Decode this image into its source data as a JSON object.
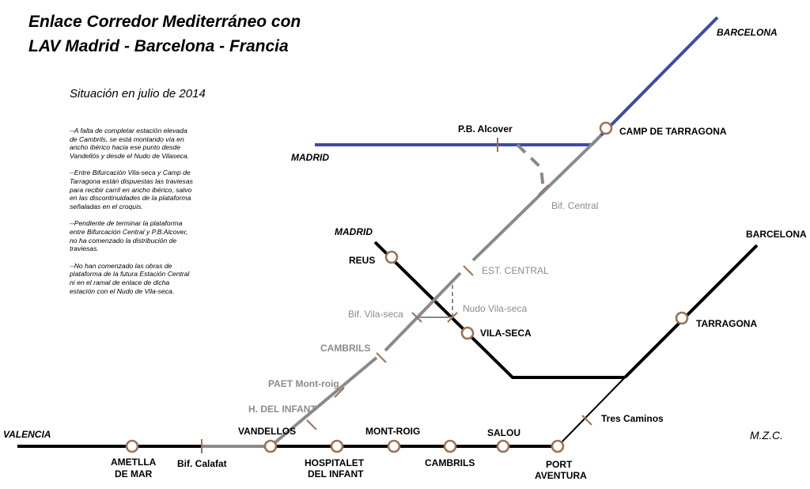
{
  "title": {
    "line1": "Enlace Corredor Mediterráneo con",
    "line2": "LAV Madrid - Barcelona - Francia"
  },
  "subtitle": "Situación en julio de 2014",
  "notes": [
    "--A falta de completar estación elevada de Cambrils, se está montando vía en ancho ibérico hacia ese punto desde Vandellós y desde el Nudo de Vilaseca.",
    "--Entre Bifurcación Vila-seca y Camp de Tarragona están dispuestas las traviesas para recibir carril en ancho ibérico, salvo en las discontinuidades de la plataforma señaladas en el croquis.",
    "--Pendiente de terminar la plataforma entre Bifurcación Central y P.B.Alcover, no ha comenzado la distribución de traviesas.",
    "--No han comenzado las obras de plataforma de la futura Estación Central ni en el ramal de enlace de dicha estación con el Nudo de Vila-seca."
  ],
  "credit": "M.Z.C.",
  "colors": {
    "lav_line": "#3f4aa6",
    "conventional_line": "#000000",
    "new_line": "#8a8a8a",
    "station_ring": "#9b7356",
    "station_fill": "#ffffff",
    "grey_text": "#8c8c8c"
  },
  "labels": {
    "barcelona_lav": "BARCELONA",
    "madrid_lav": "MADRID",
    "pb_alcover": "P.B. Alcover",
    "camp_de_tarragona": "CAMP DE TARRAGONA",
    "bif_central": "Bif. Central",
    "madrid_conv": "MADRID",
    "barcelona_conv": "BARCELONA",
    "reus": "REUS",
    "est_central": "EST. CENTRAL",
    "nudo_vila_seca": "Nudo Vila-seca",
    "bif_vila_seca": "Bif. Vila-seca",
    "vila_seca": "VILA-SECA",
    "tarragona": "TARRAGONA",
    "cambrils_new": "CAMBRILS",
    "paet_mont_roig": "PAET Mont-roig",
    "h_del_infant": "H. DEL INFANT",
    "tres_caminos": "Tres Caminos",
    "valencia": "VALENCIA",
    "ametlla_line1": "AMETLLA",
    "ametlla_line2": "DE MAR",
    "bif_calafat": "Bif. Calafat",
    "vandellos": "VANDELLOS",
    "hospitalet_line1": "HOSPITALET",
    "hospitalet_line2": "DEL INFANT",
    "mont_roig": "MONT-ROIG",
    "cambrils_coast": "CAMBRILS",
    "salou": "SALOU",
    "port_aventura_line1": "PORT",
    "port_aventura_line2": "AVENTURA"
  }
}
